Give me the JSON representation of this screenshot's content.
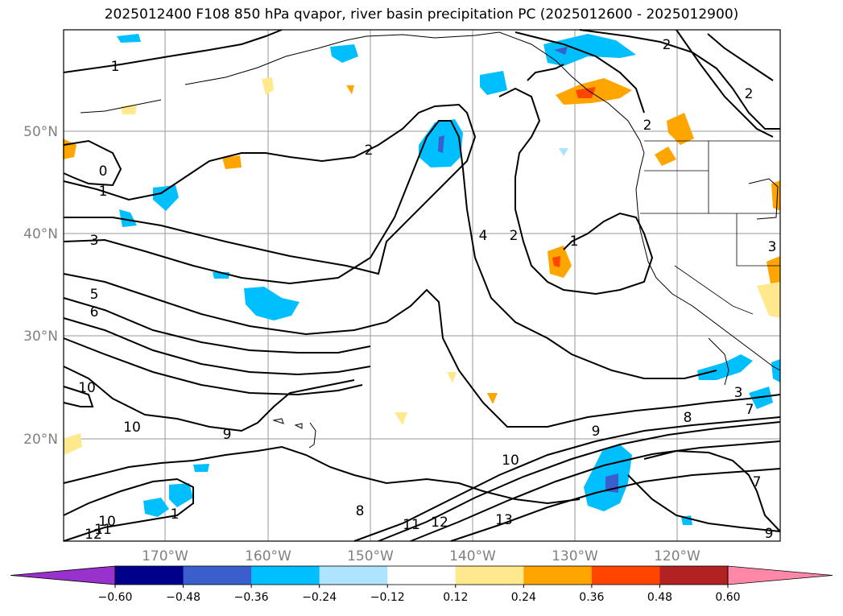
{
  "title": "2025012400 F108 850 hPa qvapor, river basin precipitation PC (2025012600 - 2025012900)",
  "lat_labels": [
    "50°N",
    "40°N",
    "30°N",
    "20°N"
  ],
  "lon_labels": [
    "170°W",
    "160°W",
    "150°W",
    "140°W",
    "130°W",
    "120°W"
  ],
  "contour_labels": [
    "1",
    "0",
    "1",
    "3",
    "5",
    "6",
    "2",
    "4",
    "2",
    "1",
    "2",
    "2",
    "2",
    "10",
    "10",
    "9",
    "10",
    "9",
    "8",
    "12",
    "10",
    "11",
    "11",
    "12",
    "13",
    "8",
    "3",
    "7",
    "7",
    "9",
    "3",
    "1"
  ],
  "colorbar": {
    "ticks": [
      "−0.60",
      "−0.48",
      "−0.36",
      "−0.24",
      "−0.12",
      "0.12",
      "0.24",
      "0.36",
      "0.48",
      "0.60"
    ],
    "colors": [
      "#9932cc",
      "#00008b",
      "#3a5fcd",
      "#00bfff",
      "#aee4ff",
      "#ffffff",
      "#ffe98c",
      "#ffa500",
      "#ff4500",
      "#b22222",
      "#ff87a8"
    ]
  }
}
